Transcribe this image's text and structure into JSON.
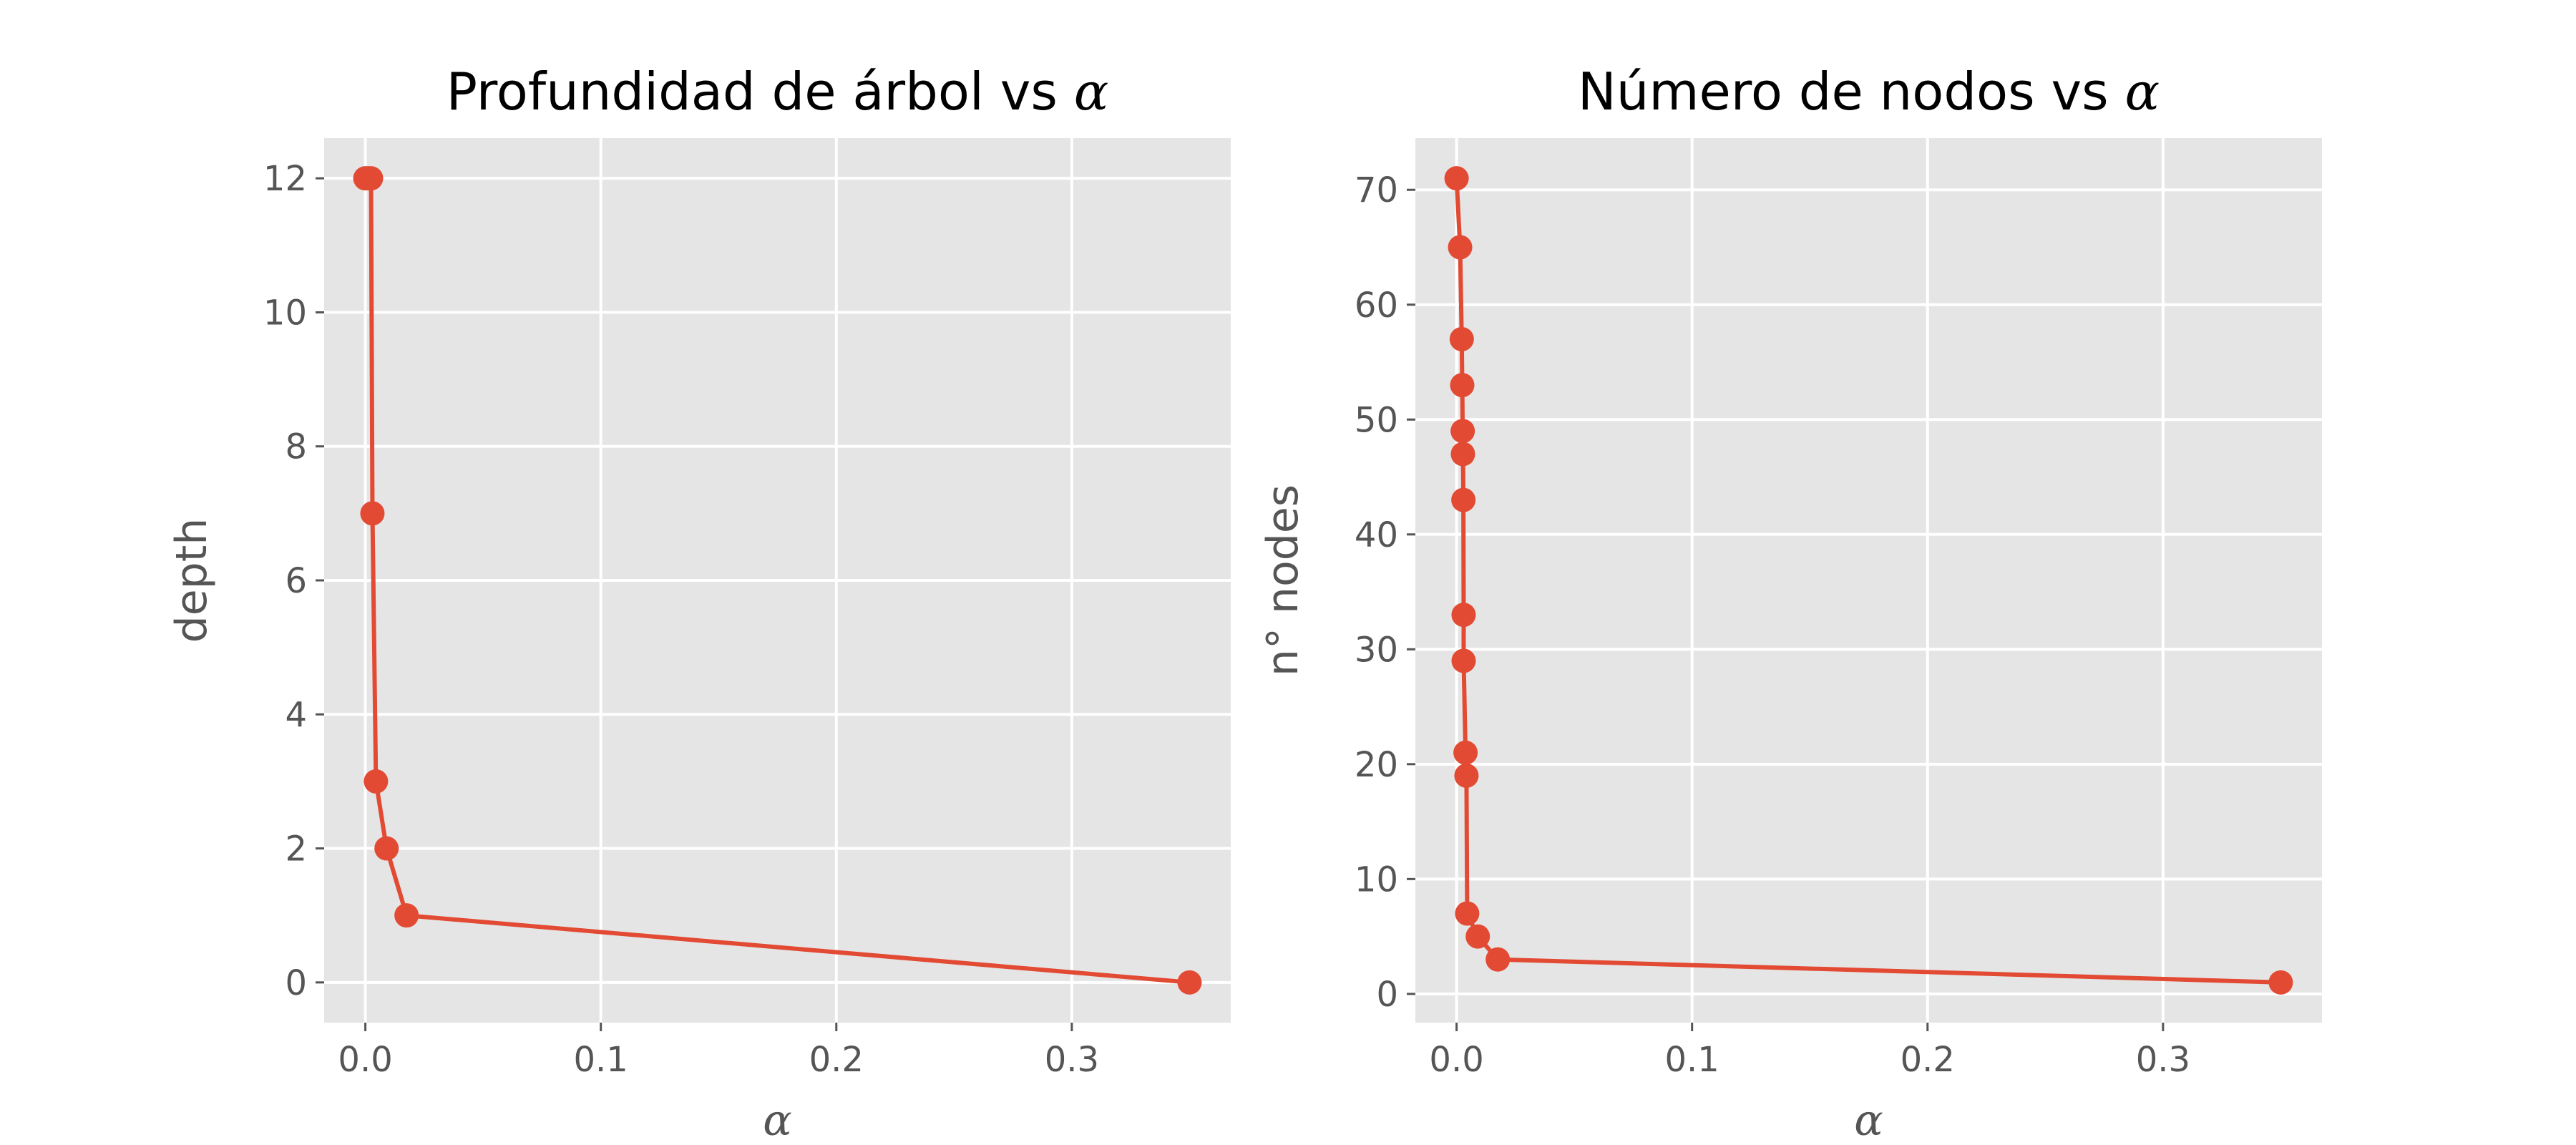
{
  "chart_data": [
    {
      "type": "line",
      "title": "Profundidad de árbol vs",
      "title_symbol": "α",
      "xlabel": "α",
      "ylabel": "depth",
      "xlim": [
        -0.0175,
        0.3675
      ],
      "ylim": [
        -0.6,
        12.6
      ],
      "xticks": [
        0.0,
        0.1,
        0.2,
        0.3
      ],
      "xtick_labels": [
        "0.0",
        "0.1",
        "0.2",
        "0.3"
      ],
      "yticks": [
        0,
        2,
        4,
        6,
        8,
        10,
        12
      ],
      "ytick_labels": [
        "0",
        "2",
        "4",
        "6",
        "8",
        "10",
        "12"
      ],
      "grid": true,
      "marker": "circle",
      "color": "#E24A33",
      "background": "#E5E5E5",
      "series": [
        {
          "x": [
            0.0,
            0.0012,
            0.0024,
            0.003,
            0.0045,
            0.009,
            0.0175,
            0.35
          ],
          "y": [
            12,
            12,
            12,
            7,
            3,
            2,
            1,
            0
          ]
        }
      ]
    },
    {
      "type": "line",
      "title": "Número de nodos vs",
      "title_symbol": "α",
      "xlabel": "α",
      "ylabel": "n° nodes",
      "xlim": [
        -0.0175,
        0.3675
      ],
      "ylim": [
        -2.5,
        74.5
      ],
      "xticks": [
        0.0,
        0.1,
        0.2,
        0.3
      ],
      "xtick_labels": [
        "0.0",
        "0.1",
        "0.2",
        "0.3"
      ],
      "yticks": [
        0,
        10,
        20,
        30,
        40,
        50,
        60,
        70
      ],
      "ytick_labels": [
        "0",
        "10",
        "20",
        "30",
        "40",
        "50",
        "60",
        "70"
      ],
      "grid": true,
      "marker": "circle",
      "color": "#E24A33",
      "background": "#E5E5E5",
      "series": [
        {
          "x": [
            0.0,
            0.0015,
            0.0022,
            0.0024,
            0.0026,
            0.0027,
            0.0029,
            0.003,
            0.003,
            0.0038,
            0.0042,
            0.0045,
            0.009,
            0.0175,
            0.35
          ],
          "y": [
            71,
            65,
            57,
            53,
            49,
            47,
            43,
            33,
            29,
            21,
            19,
            7,
            5,
            3,
            1
          ]
        }
      ]
    }
  ]
}
